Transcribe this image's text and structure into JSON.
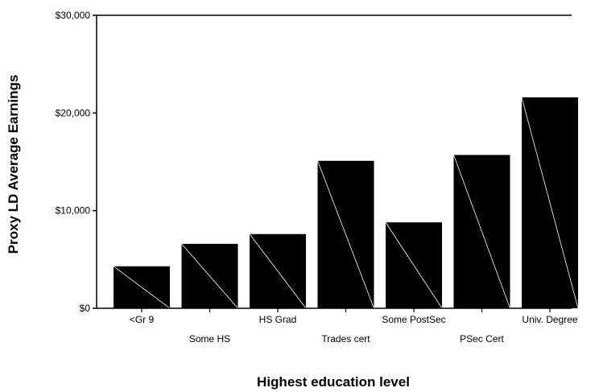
{
  "chart_data": {
    "type": "bar",
    "title": "",
    "xlabel": "Highest education level",
    "ylabel": "Proxy LD Average Earnings",
    "categories": [
      "<Gr 9",
      "Some HS",
      "HS Grad",
      "Trades cert",
      "Some PostSec",
      "PSec Cert",
      "Univ. Degree"
    ],
    "values": [
      4300,
      6600,
      7600,
      15100,
      8800,
      15700,
      21600
    ],
    "ylim": [
      0,
      30000
    ],
    "yticks": [
      0,
      10000,
      20000,
      30000
    ],
    "ytick_labels": [
      "$0",
      "$10,000",
      "$20,000",
      "$30,000"
    ],
    "grid": false,
    "legend": "none",
    "colors": {
      "bar": "#000000",
      "bar_diagonal": "#ffffff",
      "axis": "#000000",
      "background": "#ffffff"
    }
  }
}
